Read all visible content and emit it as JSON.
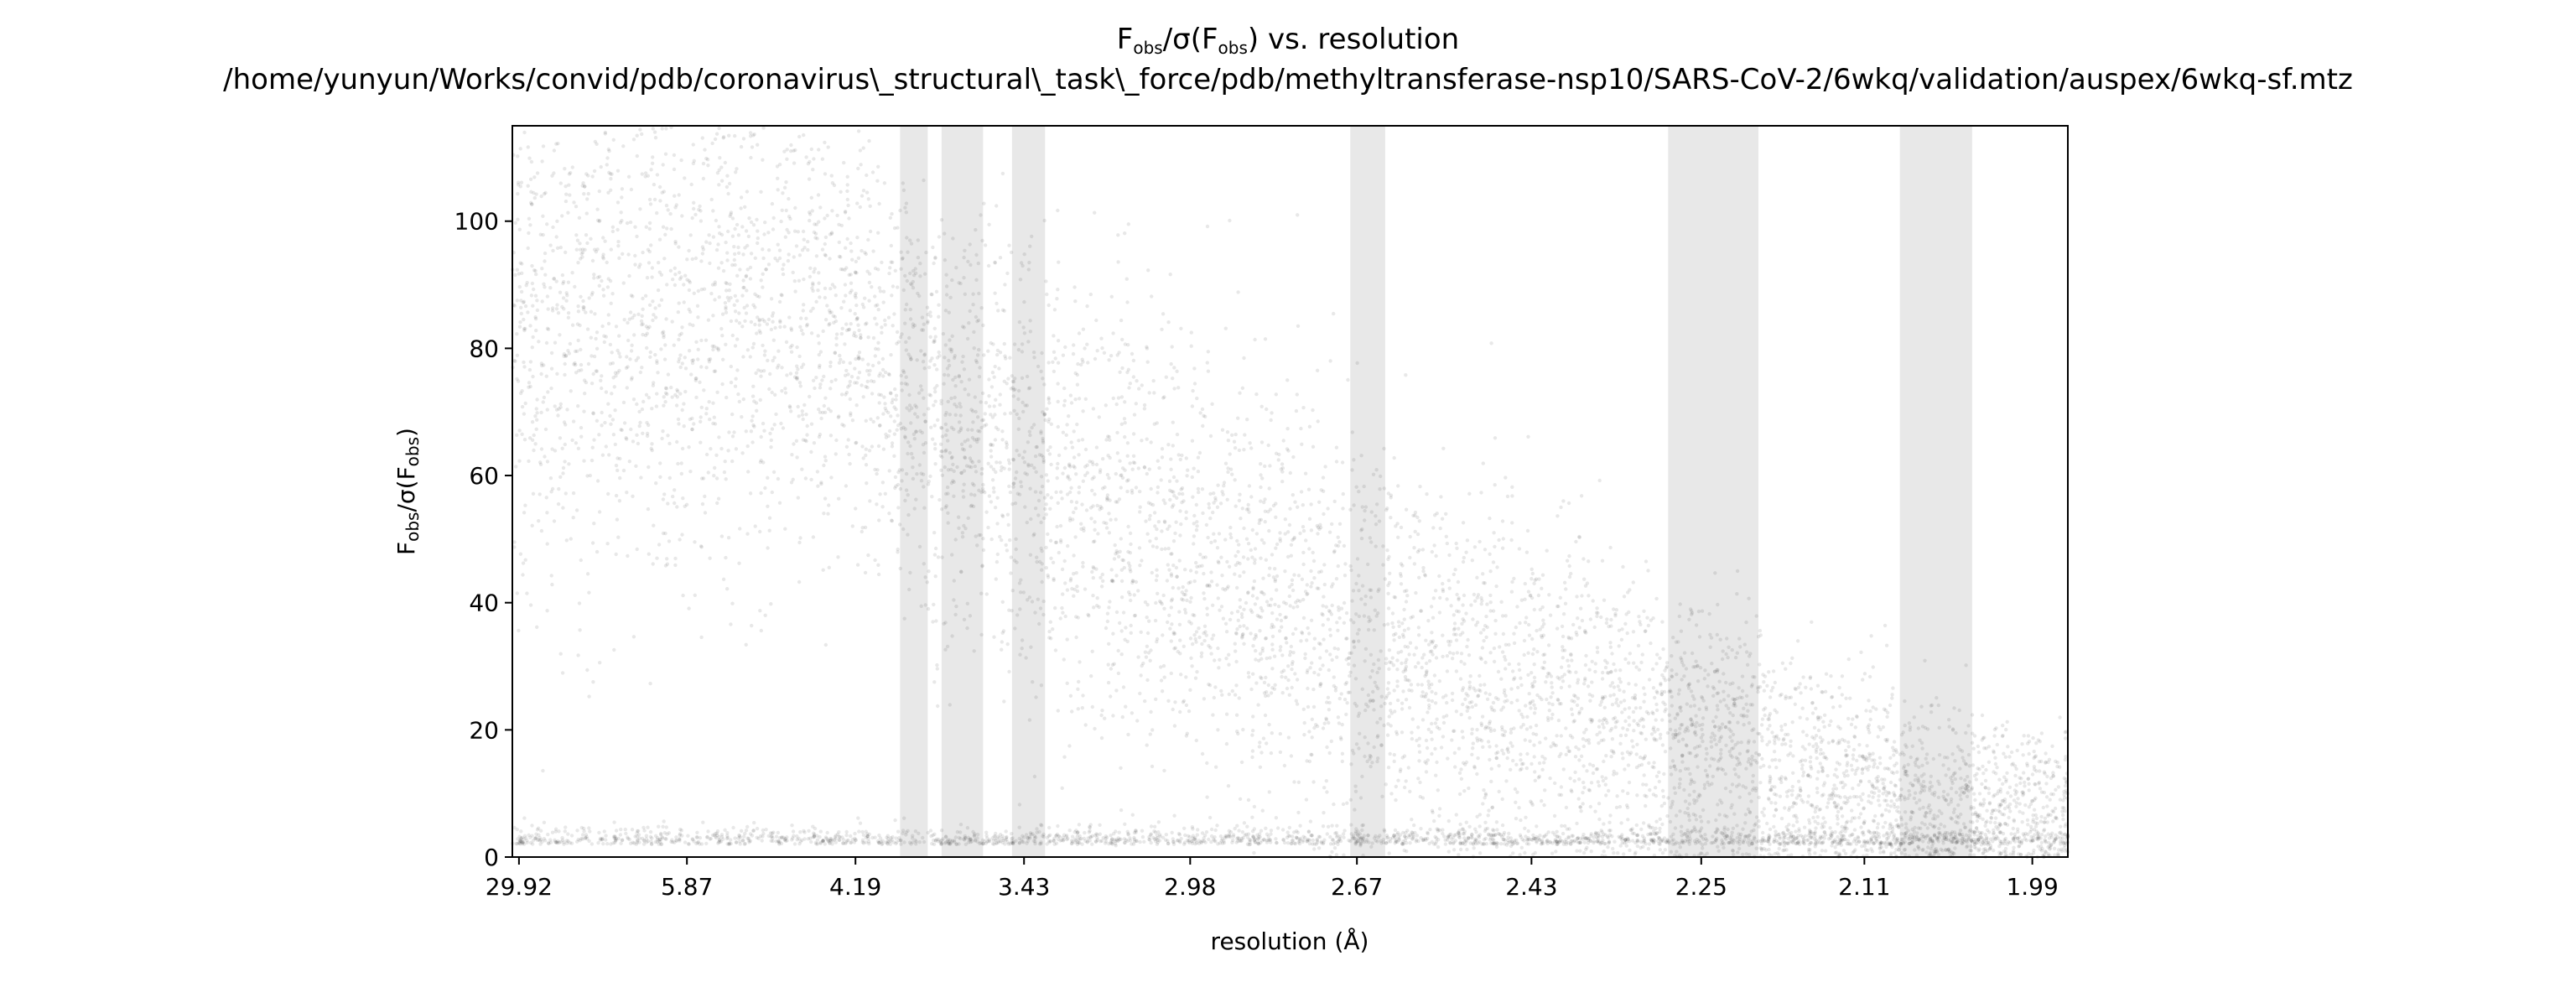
{
  "chart_data": {
    "type": "scatter",
    "title": {
      "line1_main": "F",
      "line1_sub1": "obs",
      "line1_mid": "/σ(F",
      "line1_sub2": "obs",
      "line1_end": ") vs. resolution",
      "line2": "/home/yunyun/Works/convid/pdb/coronavirus\\_structural\\_task\\_force/pdb/methyltransferase-nsp10/SARS-CoV-2/6wkq/validation/auspex/6wkq-sf.mtz"
    },
    "xlabel": "resolution (Å)",
    "ylabel": {
      "main": "F",
      "sub1": "obs",
      "mid": "/σ(F",
      "sub2": "obs",
      "end": ")"
    },
    "x_axis_scale": "1/d² (reciprocal resolution squared)",
    "x_range_inv_d2": [
      0.0,
      0.2584
    ],
    "ylim": [
      0,
      115
    ],
    "x_ticks": [
      {
        "label": "29.92",
        "inv_d2": 0.0011
      },
      {
        "label": "5.87",
        "inv_d2": 0.029
      },
      {
        "label": "4.19",
        "inv_d2": 0.057
      },
      {
        "label": "3.43",
        "inv_d2": 0.085
      },
      {
        "label": "2.98",
        "inv_d2": 0.1126
      },
      {
        "label": "2.67",
        "inv_d2": 0.1403
      },
      {
        "label": "2.43",
        "inv_d2": 0.1693
      },
      {
        "label": "2.25",
        "inv_d2": 0.1975
      },
      {
        "label": "2.11",
        "inv_d2": 0.2246
      },
      {
        "label": "1.99",
        "inv_d2": 0.2525
      }
    ],
    "y_ticks": [
      0,
      20,
      40,
      60,
      80,
      100
    ],
    "ice_rings_inv_d2": [
      [
        0.0644,
        0.069
      ],
      [
        0.0713,
        0.0782
      ],
      [
        0.083,
        0.0885
      ],
      [
        0.1392,
        0.145
      ],
      [
        0.192,
        0.207
      ],
      [
        0.2305,
        0.2425
      ]
    ],
    "ice_ring_color": "#e8e8e8",
    "point_color": "#000000",
    "density_profile": [
      {
        "inv_d2": 0.005,
        "mean": 82,
        "spread": 22
      },
      {
        "inv_d2": 0.03,
        "mean": 86,
        "spread": 20
      },
      {
        "inv_d2": 0.05,
        "mean": 88,
        "spread": 18
      },
      {
        "inv_d2": 0.07,
        "mean": 70,
        "spread": 16
      },
      {
        "inv_d2": 0.1,
        "mean": 52,
        "spread": 18
      },
      {
        "inv_d2": 0.14,
        "mean": 33,
        "spread": 16
      },
      {
        "inv_d2": 0.18,
        "mean": 22,
        "spread": 13
      },
      {
        "inv_d2": 0.22,
        "mean": 12,
        "spread": 9
      },
      {
        "inv_d2": 0.2584,
        "mean": 6,
        "spread": 6
      }
    ],
    "noise_floor": 2,
    "grid": false,
    "legend": "none"
  }
}
